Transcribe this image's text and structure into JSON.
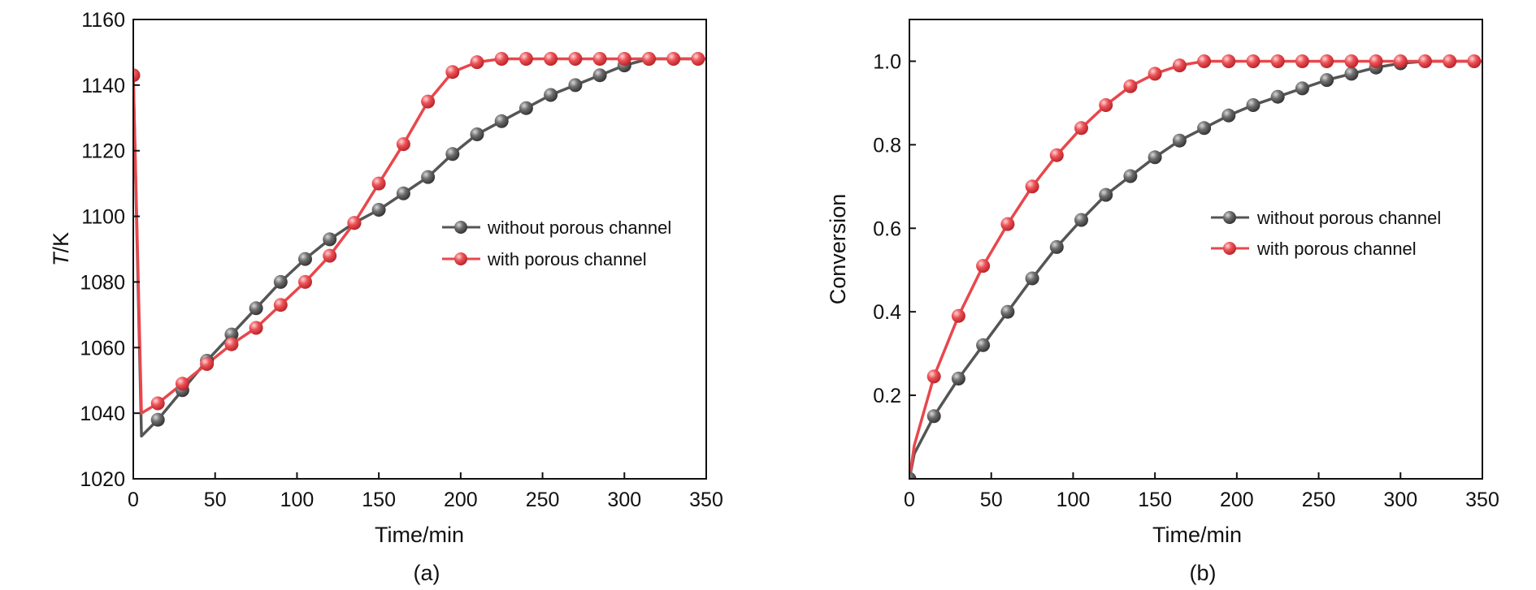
{
  "colors": {
    "series_dark": "#555555",
    "series_red": "#e8474c",
    "axis": "#111111"
  },
  "chart_data": [
    {
      "type": "line",
      "panel_label": "(a)",
      "xlabel": "Time/min",
      "ylabel_italic": "T",
      "ylabel_rest": "/K",
      "xlim": [
        0,
        350
      ],
      "ylim": [
        1020,
        1160
      ],
      "x_ticks": [
        "0",
        "50",
        "100",
        "150",
        "200",
        "250",
        "300",
        "350"
      ],
      "y_ticks": [
        "1020",
        "1040",
        "1060",
        "1080",
        "1100",
        "1120",
        "1140",
        "1160"
      ],
      "grid": false,
      "legend_position": "center-right",
      "series": [
        {
          "name": "without porous channel",
          "color": "#555555",
          "line": [
            [
              0,
              1143
            ],
            [
              5,
              1033
            ],
            [
              15,
              1038
            ],
            [
              30,
              1047
            ],
            [
              45,
              1056
            ],
            [
              60,
              1064
            ],
            [
              75,
              1072
            ],
            [
              90,
              1080
            ],
            [
              105,
              1087
            ],
            [
              120,
              1093
            ],
            [
              135,
              1098
            ],
            [
              150,
              1102
            ],
            [
              165,
              1107
            ],
            [
              180,
              1112
            ],
            [
              195,
              1119
            ],
            [
              210,
              1125
            ],
            [
              225,
              1129
            ],
            [
              240,
              1133
            ],
            [
              255,
              1137
            ],
            [
              270,
              1140
            ],
            [
              285,
              1143
            ],
            [
              300,
              1146
            ],
            [
              315,
              1148
            ],
            [
              330,
              1148
            ],
            [
              345,
              1148
            ],
            [
              350,
              1148
            ]
          ],
          "markers": [
            [
              15,
              1038
            ],
            [
              30,
              1047
            ],
            [
              45,
              1056
            ],
            [
              60,
              1064
            ],
            [
              75,
              1072
            ],
            [
              90,
              1080
            ],
            [
              105,
              1087
            ],
            [
              120,
              1093
            ],
            [
              135,
              1098
            ],
            [
              150,
              1102
            ],
            [
              165,
              1107
            ],
            [
              180,
              1112
            ],
            [
              195,
              1119
            ],
            [
              210,
              1125
            ],
            [
              225,
              1129
            ],
            [
              240,
              1133
            ],
            [
              255,
              1137
            ],
            [
              270,
              1140
            ],
            [
              285,
              1143
            ],
            [
              300,
              1146
            ],
            [
              315,
              1148
            ]
          ]
        },
        {
          "name": "with porous channel",
          "color": "#e8474c",
          "line": [
            [
              0,
              1143
            ],
            [
              5,
              1040
            ],
            [
              15,
              1043
            ],
            [
              30,
              1049
            ],
            [
              45,
              1055
            ],
            [
              60,
              1061
            ],
            [
              75,
              1066
            ],
            [
              90,
              1073
            ],
            [
              105,
              1080
            ],
            [
              120,
              1088
            ],
            [
              135,
              1098
            ],
            [
              150,
              1110
            ],
            [
              165,
              1122
            ],
            [
              180,
              1135
            ],
            [
              195,
              1144
            ],
            [
              210,
              1147
            ],
            [
              225,
              1148
            ],
            [
              240,
              1148
            ],
            [
              255,
              1148
            ],
            [
              270,
              1148
            ],
            [
              285,
              1148
            ],
            [
              300,
              1148
            ],
            [
              315,
              1148
            ],
            [
              330,
              1148
            ],
            [
              345,
              1148
            ],
            [
              350,
              1148
            ]
          ],
          "markers": [
            [
              0,
              1143
            ],
            [
              15,
              1043
            ],
            [
              30,
              1049
            ],
            [
              45,
              1055
            ],
            [
              60,
              1061
            ],
            [
              75,
              1066
            ],
            [
              90,
              1073
            ],
            [
              105,
              1080
            ],
            [
              120,
              1088
            ],
            [
              135,
              1098
            ],
            [
              150,
              1110
            ],
            [
              165,
              1122
            ],
            [
              180,
              1135
            ],
            [
              195,
              1144
            ],
            [
              210,
              1147
            ],
            [
              225,
              1148
            ],
            [
              240,
              1148
            ],
            [
              255,
              1148
            ],
            [
              270,
              1148
            ],
            [
              285,
              1148
            ],
            [
              300,
              1148
            ],
            [
              315,
              1148
            ],
            [
              330,
              1148
            ],
            [
              345,
              1148
            ]
          ]
        }
      ]
    },
    {
      "type": "line",
      "panel_label": "(b)",
      "xlabel": "Time/min",
      "ylabel": "Conversion",
      "xlim": [
        0,
        350
      ],
      "ylim": [
        0,
        1.1
      ],
      "x_ticks": [
        "0",
        "50",
        "100",
        "150",
        "200",
        "250",
        "300",
        "350"
      ],
      "y_ticks": [
        "0.2",
        "0.4",
        "0.6",
        "0.8",
        "1.0"
      ],
      "grid": false,
      "legend_position": "center-right",
      "series": [
        {
          "name": "without porous channel",
          "color": "#555555",
          "line": [
            [
              0,
              0.0
            ],
            [
              3,
              0.06
            ],
            [
              15,
              0.15
            ],
            [
              30,
              0.24
            ],
            [
              45,
              0.32
            ],
            [
              60,
              0.4
            ],
            [
              75,
              0.48
            ],
            [
              90,
              0.555
            ],
            [
              105,
              0.62
            ],
            [
              120,
              0.68
            ],
            [
              135,
              0.725
            ],
            [
              150,
              0.77
            ],
            [
              165,
              0.81
            ],
            [
              180,
              0.84
            ],
            [
              195,
              0.87
            ],
            [
              210,
              0.895
            ],
            [
              225,
              0.915
            ],
            [
              240,
              0.935
            ],
            [
              255,
              0.955
            ],
            [
              270,
              0.97
            ],
            [
              285,
              0.985
            ],
            [
              300,
              0.995
            ],
            [
              315,
              1.0
            ],
            [
              330,
              1.0
            ],
            [
              345,
              1.0
            ],
            [
              350,
              1.0
            ]
          ],
          "markers": [
            [
              0,
              0.0
            ],
            [
              15,
              0.15
            ],
            [
              30,
              0.24
            ],
            [
              45,
              0.32
            ],
            [
              60,
              0.4
            ],
            [
              75,
              0.48
            ],
            [
              90,
              0.555
            ],
            [
              105,
              0.62
            ],
            [
              120,
              0.68
            ],
            [
              135,
              0.725
            ],
            [
              150,
              0.77
            ],
            [
              165,
              0.81
            ],
            [
              180,
              0.84
            ],
            [
              195,
              0.87
            ],
            [
              210,
              0.895
            ],
            [
              225,
              0.915
            ],
            [
              240,
              0.935
            ],
            [
              255,
              0.955
            ],
            [
              270,
              0.97
            ],
            [
              285,
              0.985
            ],
            [
              300,
              0.995
            ]
          ]
        },
        {
          "name": "with porous channel",
          "color": "#e8474c",
          "line": [
            [
              0,
              0.0
            ],
            [
              3,
              0.08
            ],
            [
              15,
              0.245
            ],
            [
              30,
              0.39
            ],
            [
              45,
              0.51
            ],
            [
              60,
              0.61
            ],
            [
              75,
              0.7
            ],
            [
              90,
              0.775
            ],
            [
              105,
              0.84
            ],
            [
              120,
              0.895
            ],
            [
              135,
              0.94
            ],
            [
              150,
              0.97
            ],
            [
              165,
              0.99
            ],
            [
              180,
              1.0
            ],
            [
              195,
              1.0
            ],
            [
              210,
              1.0
            ],
            [
              225,
              1.0
            ],
            [
              240,
              1.0
            ],
            [
              255,
              1.0
            ],
            [
              270,
              1.0
            ],
            [
              285,
              1.0
            ],
            [
              300,
              1.0
            ],
            [
              315,
              1.0
            ],
            [
              330,
              1.0
            ],
            [
              345,
              1.0
            ],
            [
              350,
              1.0
            ]
          ],
          "markers": [
            [
              15,
              0.245
            ],
            [
              30,
              0.39
            ],
            [
              45,
              0.51
            ],
            [
              60,
              0.61
            ],
            [
              75,
              0.7
            ],
            [
              90,
              0.775
            ],
            [
              105,
              0.84
            ],
            [
              120,
              0.895
            ],
            [
              135,
              0.94
            ],
            [
              150,
              0.97
            ],
            [
              165,
              0.99
            ],
            [
              180,
              1.0
            ],
            [
              195,
              1.0
            ],
            [
              210,
              1.0
            ],
            [
              225,
              1.0
            ],
            [
              240,
              1.0
            ],
            [
              255,
              1.0
            ],
            [
              270,
              1.0
            ],
            [
              285,
              1.0
            ],
            [
              300,
              1.0
            ],
            [
              315,
              1.0
            ],
            [
              330,
              1.0
            ],
            [
              345,
              1.0
            ]
          ]
        }
      ]
    }
  ]
}
